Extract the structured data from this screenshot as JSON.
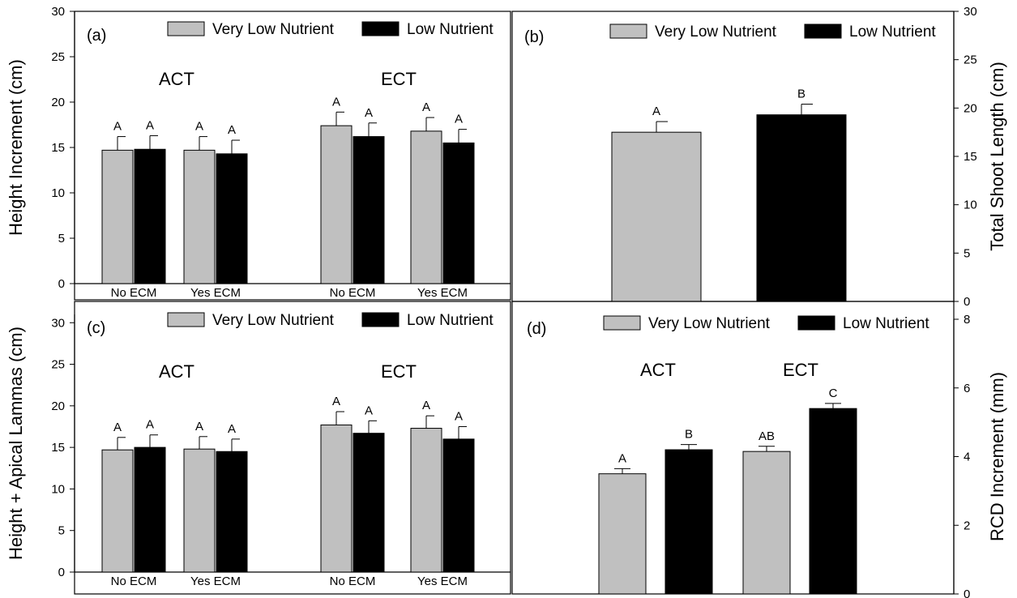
{
  "colors": {
    "very_low": "#c0c0c0",
    "low": "#000000",
    "axis": "#000000"
  },
  "chart_data": [
    {
      "id": "a",
      "type": "bar",
      "panel_label": "(a)",
      "ylabel": "Height Increment (cm)",
      "ylim": [
        0,
        30
      ],
      "yticks": [
        0,
        5,
        10,
        15,
        20,
        25,
        30
      ],
      "legend": [
        "Very Low Nutrient",
        "Low Nutrient"
      ],
      "legend_placement": "top",
      "groups": [
        "ACT",
        "ECT"
      ],
      "categories": [
        "No ECM",
        "Yes ECM",
        "No ECM",
        "Yes ECM"
      ],
      "series": [
        {
          "name": "Very Low Nutrient",
          "values": [
            14.7,
            14.7,
            17.4,
            16.8
          ],
          "errors": [
            1.5,
            1.5,
            1.5,
            1.5
          ],
          "letters": [
            "A",
            "A",
            "A",
            "A"
          ]
        },
        {
          "name": "Low Nutrient",
          "values": [
            14.8,
            14.3,
            16.2,
            15.5
          ],
          "errors": [
            1.5,
            1.5,
            1.5,
            1.5
          ],
          "letters": [
            "A",
            "A",
            "A",
            "A"
          ]
        }
      ]
    },
    {
      "id": "b",
      "type": "bar",
      "panel_label": "(b)",
      "ylabel": "Total Shoot Length (cm)",
      "ylim": [
        0,
        30
      ],
      "yticks": [
        0,
        5,
        10,
        15,
        20,
        25,
        30
      ],
      "legend": [
        "Very Low Nutrient",
        "Low Nutrient"
      ],
      "legend_placement": "top",
      "categories": [
        "Very Low Nutrient",
        "Low Nutrient"
      ],
      "values": [
        17.5,
        19.3
      ],
      "errors": [
        1.1,
        1.1
      ],
      "letters": [
        "A",
        "B"
      ]
    },
    {
      "id": "c",
      "type": "bar",
      "panel_label": "(c)",
      "ylabel": "Height + Apical Lammas (cm)",
      "ylim": [
        0,
        31
      ],
      "yticks": [
        0,
        5,
        10,
        15,
        20,
        25,
        30
      ],
      "legend": [
        "Very Low Nutrient",
        "Low Nutrient"
      ],
      "legend_placement": "top",
      "groups": [
        "ACT",
        "ECT"
      ],
      "categories": [
        "No ECM",
        "Yes ECM",
        "No ECM",
        "Yes ECM"
      ],
      "series": [
        {
          "name": "Very Low Nutrient",
          "values": [
            14.7,
            14.8,
            17.7,
            17.3
          ],
          "errors": [
            1.5,
            1.5,
            1.6,
            1.5
          ],
          "letters": [
            "A",
            "A",
            "A",
            "A"
          ]
        },
        {
          "name": "Low Nutrient",
          "values": [
            15.0,
            14.5,
            16.7,
            16.0
          ],
          "errors": [
            1.5,
            1.5,
            1.5,
            1.5
          ],
          "letters": [
            "A",
            "A",
            "A",
            "A"
          ]
        }
      ]
    },
    {
      "id": "d",
      "type": "bar",
      "panel_label": "(d)",
      "ylabel": "RCD Increment (mm)",
      "ylim": [
        0,
        8
      ],
      "yticks": [
        0,
        2,
        4,
        6,
        8
      ],
      "legend": [
        "Very Low Nutrient",
        "Low Nutrient"
      ],
      "legend_placement": "top",
      "groups": [
        "ACT",
        "ECT"
      ],
      "values": [
        3.5,
        4.2,
        4.15,
        5.4
      ],
      "errors": [
        0.15,
        0.15,
        0.15,
        0.15
      ],
      "letters": [
        "A",
        "B",
        "AB",
        "C"
      ]
    }
  ]
}
